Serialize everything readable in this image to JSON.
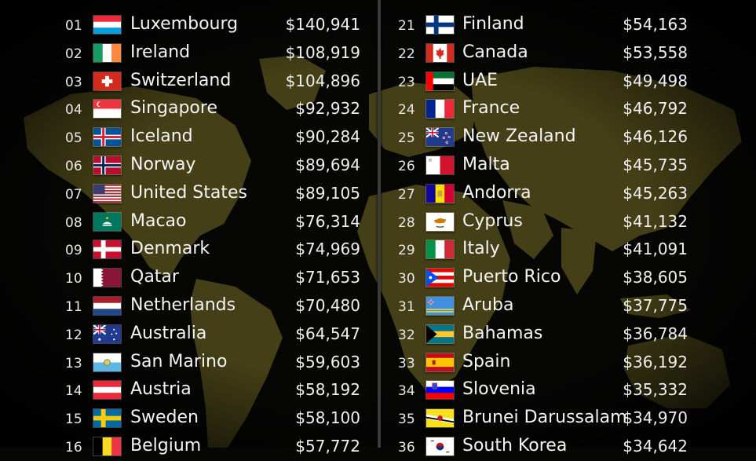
{
  "left_column": [
    {
      "rank": "01",
      "country": "Luxembourg",
      "value": "$140,941",
      "flag": "flag-luxembourg-icon"
    },
    {
      "rank": "02",
      "country": "Ireland",
      "value": "$108,919",
      "flag": "flag-ireland-icon"
    },
    {
      "rank": "03",
      "country": "Switzerland",
      "value": "$104,896",
      "flag": "flag-switzerland-icon"
    },
    {
      "rank": "04",
      "country": "Singapore",
      "value": "$92,932",
      "flag": "flag-singapore-icon"
    },
    {
      "rank": "05",
      "country": "Iceland",
      "value": "$90,284",
      "flag": "flag-iceland-icon"
    },
    {
      "rank": "06",
      "country": "Norway",
      "value": "$89,694",
      "flag": "flag-norway-icon"
    },
    {
      "rank": "07",
      "country": "United States",
      "value": "$89,105",
      "flag": "flag-united-states-icon"
    },
    {
      "rank": "08",
      "country": "Macao",
      "value": "$76,314",
      "flag": "flag-macao-icon"
    },
    {
      "rank": "09",
      "country": "Denmark",
      "value": "$74,969",
      "flag": "flag-denmark-icon"
    },
    {
      "rank": "10",
      "country": "Qatar",
      "value": "$71,653",
      "flag": "flag-qatar-icon"
    },
    {
      "rank": "11",
      "country": "Netherlands",
      "value": "$70,480",
      "flag": "flag-netherlands-icon"
    },
    {
      "rank": "12",
      "country": "Australia",
      "value": "$64,547",
      "flag": "flag-australia-icon"
    },
    {
      "rank": "13",
      "country": "San Marino",
      "value": "$59,603",
      "flag": "flag-san-marino-icon"
    },
    {
      "rank": "14",
      "country": "Austria",
      "value": "$58,192",
      "flag": "flag-austria-icon"
    },
    {
      "rank": "15",
      "country": "Sweden",
      "value": "$58,100",
      "flag": "flag-sweden-icon"
    },
    {
      "rank": "16",
      "country": "Belgium",
      "value": "$57,772",
      "flag": "flag-belgium-icon"
    }
  ],
  "right_column": [
    {
      "rank": "21",
      "country": "Finland",
      "value": "$54,163",
      "flag": "flag-finland-icon"
    },
    {
      "rank": "22",
      "country": "Canada",
      "value": "$53,558",
      "flag": "flag-canada-icon"
    },
    {
      "rank": "23",
      "country": "UAE",
      "value": "$49,498",
      "flag": "flag-uae-icon"
    },
    {
      "rank": "24",
      "country": "France",
      "value": "$46,792",
      "flag": "flag-france-icon"
    },
    {
      "rank": "25",
      "country": "New Zealand",
      "value": "$46,126",
      "flag": "flag-new-zealand-icon"
    },
    {
      "rank": "26",
      "country": "Malta",
      "value": "$45,735",
      "flag": "flag-malta-icon"
    },
    {
      "rank": "27",
      "country": "Andorra",
      "value": "$45,263",
      "flag": "flag-andorra-icon"
    },
    {
      "rank": "28",
      "country": "Cyprus",
      "value": "$41,132",
      "flag": "flag-cyprus-icon"
    },
    {
      "rank": "29",
      "country": "Italy",
      "value": "$41,091",
      "flag": "flag-italy-icon"
    },
    {
      "rank": "30",
      "country": "Puerto Rico",
      "value": "$38,605",
      "flag": "flag-puerto-rico-icon"
    },
    {
      "rank": "31",
      "country": "Aruba",
      "value": "$37,775",
      "flag": "flag-aruba-icon"
    },
    {
      "rank": "32",
      "country": "Bahamas",
      "value": "$36,784",
      "flag": "flag-bahamas-icon"
    },
    {
      "rank": "33",
      "country": "Spain",
      "value": "$36,192",
      "flag": "flag-spain-icon"
    },
    {
      "rank": "34",
      "country": "Slovenia",
      "value": "$35,332",
      "flag": "flag-slovenia-icon"
    },
    {
      "rank": "35",
      "country": "Brunei Darussalam",
      "value": "$34,970",
      "flag": "flag-brunei-icon"
    },
    {
      "rank": "36",
      "country": "South Korea",
      "value": "$34,642",
      "flag": "flag-south-korea-icon"
    }
  ],
  "colors": {
    "background": "#060605",
    "map_land": "#4a4418",
    "divider": "#3b3b3b",
    "text": "#f2f2f2"
  }
}
